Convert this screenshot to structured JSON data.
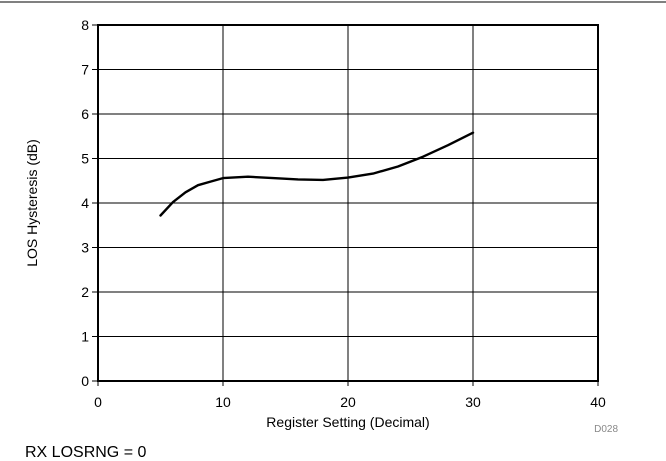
{
  "chart_data": {
    "type": "line",
    "xlabel": "Register Setting (Decimal)",
    "ylabel": "LOS Hysteresis (dB)",
    "xlim": [
      0,
      40
    ],
    "ylim": [
      0,
      8
    ],
    "x_ticks": [
      0,
      10,
      20,
      30,
      40
    ],
    "y_ticks": [
      0,
      1,
      2,
      3,
      4,
      5,
      6,
      7,
      8
    ],
    "grid": true,
    "legend": "none",
    "series": [
      {
        "color": "#000000",
        "x": [
          5,
          6,
          7,
          8,
          9,
          10,
          12,
          14,
          16,
          18,
          20,
          22,
          24,
          26,
          28,
          30
        ],
        "y": [
          3.72,
          4.02,
          4.24,
          4.4,
          4.48,
          4.56,
          4.59,
          4.56,
          4.53,
          4.52,
          4.57,
          4.66,
          4.82,
          5.04,
          5.3,
          5.58
        ]
      }
    ]
  },
  "figure_code": "D028",
  "caption": "RX LOSRNG = 0"
}
